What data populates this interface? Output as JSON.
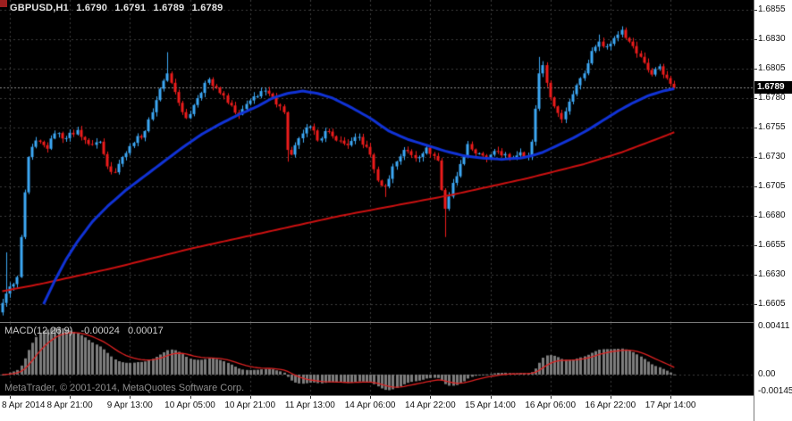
{
  "header": {
    "symbol_timeframe": "GBPUSD,H1",
    "open": "1.6790",
    "high": "1.6791",
    "low": "1.6789",
    "close": "1.6789"
  },
  "footer": {
    "copyright": "MetaTrader, © 2001-2014, MetaQuotes Software Corp."
  },
  "chart_data": {
    "type": "candlestick",
    "symbol": "GBPUSD",
    "timeframe": "H1",
    "bar_count": 180,
    "bars_per_label": 16,
    "first_label_bar_index": 2,
    "x_labels": [
      "8 Apr 2014",
      "8 Apr 21:00",
      "9 Apr 13:00",
      "10 Apr 05:00",
      "10 Apr 21:00",
      "11 Apr 13:00",
      "14 Apr 06:00",
      "14 Apr 22:00",
      "15 Apr 14:00",
      "16 Apr 06:00",
      "16 Apr 22:00",
      "17 Apr 14:00"
    ],
    "price_axis": {
      "ticks": [
        "1.6855",
        "1.6830",
        "1.6805",
        "1.6780",
        "1.6755",
        "1.6730",
        "1.6705",
        "1.6680",
        "1.6655",
        "1.6630",
        "1.6605"
      ],
      "current": {
        "label": "1.6789",
        "value": 1.6789
      }
    },
    "series": {
      "close_path": [
        [
          0,
          1.6606
        ],
        [
          1,
          1.6614
        ],
        [
          2,
          1.662
        ],
        [
          3,
          1.6622
        ],
        [
          4,
          1.6628
        ],
        [
          5,
          1.6662
        ],
        [
          6,
          1.67
        ],
        [
          7,
          1.673
        ],
        [
          9,
          1.6744
        ],
        [
          12,
          1.6737
        ],
        [
          14,
          1.675
        ],
        [
          17,
          1.6746
        ],
        [
          20,
          1.6753
        ],
        [
          23,
          1.6741
        ],
        [
          26,
          1.6743
        ],
        [
          28,
          1.6722
        ],
        [
          30,
          1.6717
        ],
        [
          32,
          1.673
        ],
        [
          35,
          1.6742
        ],
        [
          38,
          1.6752
        ],
        [
          40,
          1.6768
        ],
        [
          42,
          1.6788
        ],
        [
          44,
          1.6801
        ],
        [
          45,
          1.6793
        ],
        [
          47,
          1.6776
        ],
        [
          49,
          1.6763
        ],
        [
          52,
          1.678
        ],
        [
          55,
          1.6796
        ],
        [
          57,
          1.6789
        ],
        [
          60,
          1.6776
        ],
        [
          63,
          1.6766
        ],
        [
          66,
          1.6778
        ],
        [
          69,
          1.6786
        ],
        [
          72,
          1.6781
        ],
        [
          74,
          1.6773
        ],
        [
          75,
          1.6768
        ],
        [
          76,
          1.6736
        ],
        [
          77,
          1.6732
        ],
        [
          80,
          1.675
        ],
        [
          82,
          1.6756
        ],
        [
          84,
          1.6744
        ],
        [
          86,
          1.6752
        ],
        [
          89,
          1.6744
        ],
        [
          92,
          1.674
        ],
        [
          95,
          1.6747
        ],
        [
          98,
          1.6732
        ],
        [
          100,
          1.671
        ],
        [
          102,
          1.6705
        ],
        [
          104,
          1.6722
        ],
        [
          107,
          1.6736
        ],
        [
          110,
          1.6729
        ],
        [
          113,
          1.6738
        ],
        [
          116,
          1.6727
        ],
        [
          117,
          1.6702
        ],
        [
          118,
          1.6686
        ],
        [
          120,
          1.6708
        ],
        [
          122,
          1.6724
        ],
        [
          124,
          1.6741
        ],
        [
          126,
          1.6733
        ],
        [
          129,
          1.6728
        ],
        [
          132,
          1.6735
        ],
        [
          135,
          1.6729
        ],
        [
          138,
          1.6734
        ],
        [
          140,
          1.6731
        ],
        [
          141,
          1.6743
        ],
        [
          142,
          1.6771
        ],
        [
          143,
          1.6801
        ],
        [
          144,
          1.6808
        ],
        [
          145,
          1.6793
        ],
        [
          147,
          1.6773
        ],
        [
          149,
          1.6762
        ],
        [
          151,
          1.6777
        ],
        [
          153,
          1.6791
        ],
        [
          155,
          1.6801
        ],
        [
          157,
          1.682
        ],
        [
          159,
          1.6828
        ],
        [
          161,
          1.6824
        ],
        [
          163,
          1.6831
        ],
        [
          165,
          1.6838
        ],
        [
          167,
          1.6828
        ],
        [
          169,
          1.6818
        ],
        [
          171,
          1.681
        ],
        [
          173,
          1.68
        ],
        [
          175,
          1.6807
        ],
        [
          177,
          1.6797
        ],
        [
          179,
          1.6789
        ]
      ],
      "long_wicks": [
        {
          "i": 1,
          "high": 1.6649
        },
        {
          "i": 44,
          "high": 1.6819
        },
        {
          "i": 76,
          "low": 1.6726
        },
        {
          "i": 102,
          "low": 1.6696
        },
        {
          "i": 118,
          "low": 1.6662
        },
        {
          "i": 143,
          "high": 1.6815
        },
        {
          "i": 159,
          "high": 1.6834
        },
        {
          "i": 165,
          "high": 1.6841
        }
      ],
      "ma_fast": {
        "name": "fast-ma-blue",
        "anchors": [
          [
            11,
            1.6605
          ],
          [
            14,
            1.6625
          ],
          [
            17,
            1.6643
          ],
          [
            20,
            1.6658
          ],
          [
            24,
            1.6675
          ],
          [
            28,
            1.6688
          ],
          [
            33,
            1.6702
          ],
          [
            38,
            1.6714
          ],
          [
            43,
            1.6726
          ],
          [
            48,
            1.6738
          ],
          [
            53,
            1.6749
          ],
          [
            58,
            1.6758
          ],
          [
            63,
            1.6766
          ],
          [
            68,
            1.6773
          ],
          [
            72,
            1.678
          ],
          [
            76,
            1.6784
          ],
          [
            80,
            1.6786
          ],
          [
            84,
            1.6784
          ],
          [
            88,
            1.678
          ],
          [
            93,
            1.6772
          ],
          [
            98,
            1.6763
          ],
          [
            103,
            1.6752
          ],
          [
            108,
            1.6745
          ],
          [
            113,
            1.674
          ],
          [
            118,
            1.6735
          ],
          [
            123,
            1.6731
          ],
          [
            128,
            1.6729
          ],
          [
            133,
            1.6728
          ],
          [
            138,
            1.6729
          ],
          [
            141,
            1.6731
          ],
          [
            144,
            1.6734
          ],
          [
            148,
            1.674
          ],
          [
            152,
            1.6746
          ],
          [
            156,
            1.6753
          ],
          [
            160,
            1.6761
          ],
          [
            164,
            1.6769
          ],
          [
            168,
            1.6776
          ],
          [
            172,
            1.6782
          ],
          [
            176,
            1.6786
          ],
          [
            179,
            1.6788
          ]
        ]
      },
      "ma_slow": {
        "name": "slow-ma-red",
        "anchors": [
          [
            0,
            1.6616
          ],
          [
            10,
            1.6622
          ],
          [
            20,
            1.6629
          ],
          [
            30,
            1.6636
          ],
          [
            40,
            1.6644
          ],
          [
            50,
            1.6652
          ],
          [
            60,
            1.6659
          ],
          [
            70,
            1.6666
          ],
          [
            80,
            1.6673
          ],
          [
            90,
            1.668
          ],
          [
            100,
            1.6686
          ],
          [
            110,
            1.6692
          ],
          [
            120,
            1.6698
          ],
          [
            130,
            1.6705
          ],
          [
            140,
            1.6712
          ],
          [
            150,
            1.672
          ],
          [
            155,
            1.6724
          ],
          [
            160,
            1.6729
          ],
          [
            165,
            1.6734
          ],
          [
            170,
            1.674
          ],
          [
            175,
            1.6746
          ],
          [
            179,
            1.6751
          ]
        ]
      }
    },
    "macd": {
      "name": "MACD(12,26,9)",
      "value": "-0.00024",
      "signal_value": "0.00017",
      "params": {
        "fast": 12,
        "slow": 26,
        "signal": 9
      },
      "axis_ticks": [
        {
          "label": "0.00411",
          "value": 0.00411
        },
        {
          "label": "0.00",
          "value": 0
        },
        {
          "label": "-0.00145",
          "value": -0.00145
        }
      ]
    },
    "colors": {
      "background": "#000000",
      "grid": "#3e3e3e",
      "bull": "#3da8f5",
      "bear": "#ee1c1c",
      "ma_fast": "#1133d6",
      "ma_slow": "#cc1111",
      "macd_hist": "#7d7d7d",
      "macd_signal": "#dd2222",
      "axis_bg": "#ffffff",
      "axis_text": "#111111",
      "current_price_line": "#8f8f8f"
    }
  }
}
